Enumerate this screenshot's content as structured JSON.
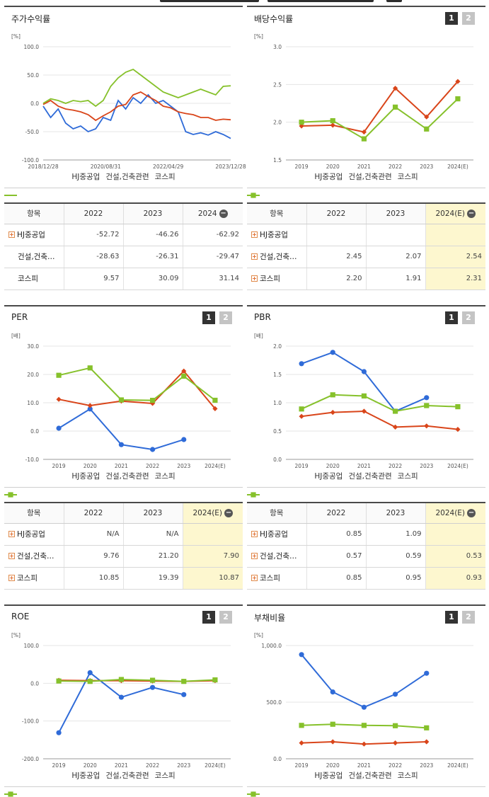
{
  "colors": {
    "hj": "#2f6bd8",
    "const": "#d9451a",
    "kospi": "#86c12b"
  },
  "legend": [
    "HJ중공업",
    "건설,건축관련",
    "코스피"
  ],
  "panels": [
    {
      "title": "주가수익률",
      "pager": [],
      "chart_data": {
        "type": "line",
        "unit": "[%]",
        "ylim": [
          -100,
          100
        ],
        "yticks": [
          "100.0",
          "50.0",
          "0.0",
          "-50.0",
          "-100.0"
        ],
        "xlabels": [
          "2018/12/28",
          "2020/08/31",
          "2022/04/29",
          "2023/12/28"
        ],
        "x": [
          0,
          4,
          8,
          12,
          16,
          20,
          24,
          28,
          32,
          36,
          40,
          44,
          48,
          52,
          56,
          60,
          64,
          68,
          72,
          76,
          80,
          84,
          88,
          92,
          96,
          100
        ],
        "series": [
          {
            "name": "HJ중공업",
            "values": [
              -5,
              -25,
              -10,
              -35,
              -45,
              -40,
              -50,
              -45,
              -25,
              -30,
              5,
              -10,
              10,
              0,
              15,
              0,
              5,
              -5,
              -15,
              -50,
              -55,
              -52,
              -56,
              -50,
              -55,
              -62
            ]
          },
          {
            "name": "건설,건축관련",
            "values": [
              -2,
              5,
              -5,
              -10,
              -12,
              -15,
              -20,
              -30,
              -22,
              -15,
              -5,
              -2,
              15,
              20,
              12,
              5,
              -5,
              -8,
              -15,
              -18,
              -20,
              -25,
              -25,
              -30,
              -28,
              -29
            ]
          },
          {
            "name": "코스피",
            "values": [
              0,
              8,
              5,
              0,
              5,
              3,
              5,
              -5,
              5,
              30,
              45,
              55,
              60,
              50,
              40,
              30,
              20,
              15,
              10,
              15,
              20,
              25,
              20,
              15,
              30,
              31
            ]
          }
        ]
      }
    },
    {
      "title": "배당수익률",
      "pager": [
        "1",
        "2"
      ],
      "chart_data": {
        "type": "line",
        "unit": "[%]",
        "ylim": [
          1.5,
          3.0
        ],
        "yticks": [
          "3.0",
          "2.5",
          "2.0",
          "1.5"
        ],
        "categories": [
          "2019",
          "2020",
          "2021",
          "2022",
          "2023",
          "2024(E)"
        ],
        "series": [
          {
            "name": "HJ중공업",
            "values": [
              null,
              null,
              null,
              null,
              null,
              null
            ]
          },
          {
            "name": "건설,건축관련",
            "values": [
              1.95,
              1.96,
              1.87,
              2.45,
              2.07,
              2.54
            ]
          },
          {
            "name": "코스피",
            "values": [
              2.0,
              2.02,
              1.78,
              2.2,
              1.91,
              2.31
            ]
          }
        ]
      }
    },
    {
      "title": "PER",
      "pager": [
        "1",
        "2"
      ],
      "chart_data": {
        "type": "line",
        "unit": "[배]",
        "ylim": [
          -10,
          30
        ],
        "yticks": [
          "30.0",
          "20.0",
          "10.0",
          "0.0",
          "-10.0"
        ],
        "categories": [
          "2019",
          "2020",
          "2021",
          "2022",
          "2023",
          "2024(E)"
        ],
        "series": [
          {
            "name": "HJ중공업",
            "values": [
              1.0,
              7.8,
              -4.8,
              -6.5,
              -3.0,
              null
            ]
          },
          {
            "name": "건설,건축관련",
            "values": [
              11.2,
              9.0,
              10.6,
              9.76,
              21.2,
              7.9
            ]
          },
          {
            "name": "코스피",
            "values": [
              19.7,
              22.3,
              11.0,
              10.85,
              19.39,
              10.87
            ]
          }
        ]
      }
    },
    {
      "title": "PBR",
      "pager": [
        "1",
        "2"
      ],
      "chart_data": {
        "type": "line",
        "unit": "[배]",
        "ylim": [
          0,
          2.0
        ],
        "yticks": [
          "2.0",
          "1.5",
          "1.0",
          "0.5",
          "0.0"
        ],
        "categories": [
          "2019",
          "2020",
          "2021",
          "2022",
          "2023",
          "2024(E)"
        ],
        "series": [
          {
            "name": "HJ중공업",
            "values": [
              1.69,
              1.89,
              1.55,
              0.85,
              1.09,
              null
            ]
          },
          {
            "name": "건설,건축관련",
            "values": [
              0.76,
              0.83,
              0.85,
              0.57,
              0.59,
              0.53
            ]
          },
          {
            "name": "코스피",
            "values": [
              0.89,
              1.14,
              1.12,
              0.85,
              0.95,
              0.93
            ]
          }
        ]
      }
    },
    {
      "title": "ROE",
      "pager": [
        "1",
        "2"
      ],
      "chart_data": {
        "type": "line",
        "unit": "[%]",
        "ylim": [
          -200,
          100
        ],
        "yticks": [
          "100.0",
          "0.0",
          "-100.0",
          "-200.0"
        ],
        "categories": [
          "2019",
          "2020",
          "2021",
          "2022",
          "2023",
          "2024(E)"
        ],
        "series": [
          {
            "name": "HJ중공업",
            "values": [
              -131,
              28,
              -37,
              -11,
              -30,
              null
            ]
          },
          {
            "name": "건설,건축관련",
            "values": [
              8,
              7,
              7,
              6,
              5,
              7
            ]
          },
          {
            "name": "코스피",
            "values": [
              6,
              5,
              10,
              8,
              5,
              9
            ]
          }
        ]
      }
    },
    {
      "title": "부채비율",
      "pager": [
        "1",
        "2"
      ],
      "chart_data": {
        "type": "line",
        "unit": "[%]",
        "ylim": [
          0,
          1000
        ],
        "yticks": [
          "1,000.0",
          "500.0",
          "0.0"
        ],
        "categories": [
          "2019",
          "2020",
          "2021",
          "2022",
          "2023",
          "2024(E)"
        ],
        "series": [
          {
            "name": "HJ중공업",
            "values": [
              920,
              590,
              455,
              570,
              755,
              null
            ]
          },
          {
            "name": "건설,건축관련",
            "values": [
              140,
              150,
              130,
              140,
              150,
              null
            ]
          },
          {
            "name": "코스피",
            "values": [
              295,
              305,
              295,
              292,
              273,
              null
            ]
          }
        ]
      }
    }
  ],
  "tables": [
    {
      "header": [
        "항목",
        "2022",
        "2023",
        "2024"
      ],
      "highlight_last": false,
      "rows": [
        {
          "name": "HJ중공업",
          "expand": true,
          "values": [
            "-52.72",
            "-46.26",
            "-62.92"
          ]
        },
        {
          "name": "건설,건축…",
          "expand": false,
          "values": [
            "-28.63",
            "-26.31",
            "-29.47"
          ]
        },
        {
          "name": "코스피",
          "expand": false,
          "values": [
            "9.57",
            "30.09",
            "31.14"
          ]
        }
      ]
    },
    {
      "header": [
        "항목",
        "2022",
        "2023",
        "2024(E)"
      ],
      "highlight_last": true,
      "rows": [
        {
          "name": "HJ중공업",
          "expand": true,
          "values": [
            "",
            "",
            ""
          ]
        },
        {
          "name": "건설,건축…",
          "expand": true,
          "values": [
            "2.45",
            "2.07",
            "2.54"
          ]
        },
        {
          "name": "코스피",
          "expand": true,
          "values": [
            "2.20",
            "1.91",
            "2.31"
          ]
        }
      ]
    },
    {
      "header": [
        "항목",
        "2022",
        "2023",
        "2024(E)"
      ],
      "highlight_last": true,
      "rows": [
        {
          "name": "HJ중공업",
          "expand": true,
          "values": [
            "N/A",
            "N/A",
            ""
          ]
        },
        {
          "name": "건설,건축…",
          "expand": true,
          "values": [
            "9.76",
            "21.20",
            "7.90"
          ]
        },
        {
          "name": "코스피",
          "expand": true,
          "values": [
            "10.85",
            "19.39",
            "10.87"
          ]
        }
      ]
    },
    {
      "header": [
        "항목",
        "2022",
        "2023",
        "2024(E)"
      ],
      "highlight_last": true,
      "rows": [
        {
          "name": "HJ중공업",
          "expand": true,
          "values": [
            "0.85",
            "1.09",
            ""
          ]
        },
        {
          "name": "건설,건축…",
          "expand": true,
          "values": [
            "0.57",
            "0.59",
            "0.53"
          ]
        },
        {
          "name": "코스피",
          "expand": true,
          "values": [
            "0.85",
            "0.95",
            "0.93"
          ]
        }
      ]
    }
  ]
}
